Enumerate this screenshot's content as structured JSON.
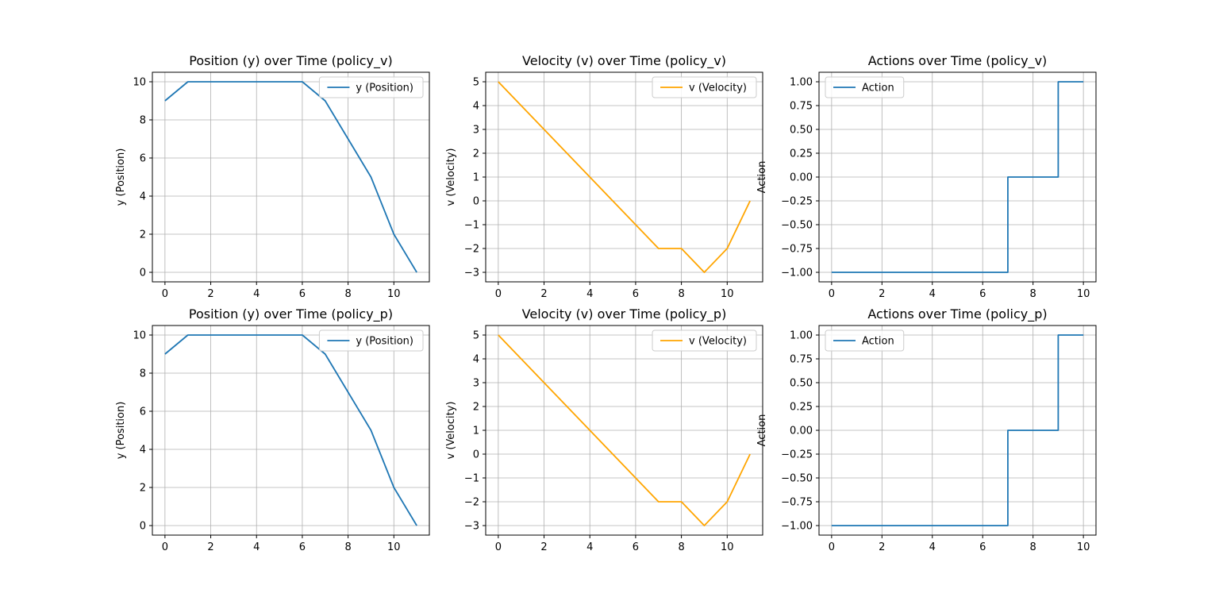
{
  "chart_data": [
    {
      "type": "line",
      "title": "Position (y) over Time (policy_v)",
      "xlabel": "",
      "ylabel": "y (Position)",
      "xlim": [
        -0.55,
        11.55
      ],
      "ylim": [
        -0.5,
        10.5
      ],
      "xticks": [
        0,
        2,
        4,
        6,
        8,
        10
      ],
      "yticks": [
        0,
        2,
        4,
        6,
        8,
        10
      ],
      "grid": true,
      "legend_position": "upper right",
      "series": [
        {
          "name": "y (Position)",
          "color": "#1f77b4",
          "step": false,
          "x": [
            0,
            1,
            2,
            3,
            4,
            5,
            6,
            7,
            8,
            9,
            10,
            11
          ],
          "y": [
            9,
            10,
            10,
            10,
            10,
            10,
            10,
            9,
            7,
            5,
            2,
            0
          ]
        }
      ]
    },
    {
      "type": "line",
      "title": "Velocity (v) over Time (policy_v)",
      "xlabel": "",
      "ylabel": "v (Velocity)",
      "xlim": [
        -0.55,
        11.55
      ],
      "ylim": [
        -3.4,
        5.4
      ],
      "xticks": [
        0,
        2,
        4,
        6,
        8,
        10
      ],
      "yticks": [
        -3,
        -2,
        -1,
        0,
        1,
        2,
        3,
        4,
        5
      ],
      "grid": true,
      "legend_position": "upper right",
      "series": [
        {
          "name": "v (Velocity)",
          "color": "#ffa500",
          "step": false,
          "x": [
            0,
            1,
            2,
            3,
            4,
            5,
            6,
            7,
            8,
            9,
            10,
            11
          ],
          "y": [
            5,
            4,
            3,
            2,
            1,
            0,
            -1,
            -2,
            -2,
            -3,
            -2,
            0
          ]
        }
      ]
    },
    {
      "type": "line",
      "title": "Actions over Time (policy_v)",
      "xlabel": "",
      "ylabel": "Action",
      "xlim": [
        -0.5,
        10.5
      ],
      "ylim": [
        -1.1,
        1.1
      ],
      "xticks": [
        0,
        2,
        4,
        6,
        8,
        10
      ],
      "yticks": [
        -1.0,
        -0.75,
        -0.5,
        -0.25,
        0.0,
        0.25,
        0.5,
        0.75,
        1.0
      ],
      "ytick_labels": [
        "−1.00",
        "−0.75",
        "−0.50",
        "−0.25",
        "0.00",
        "0.25",
        "0.50",
        "0.75",
        "1.00"
      ],
      "grid": true,
      "legend_position": "upper left",
      "series": [
        {
          "name": "Action",
          "color": "#1f77b4",
          "step": true,
          "x": [
            0,
            1,
            2,
            3,
            4,
            5,
            6,
            7,
            8,
            9,
            10
          ],
          "y": [
            -1,
            -1,
            -1,
            -1,
            -1,
            -1,
            -1,
            0,
            0,
            1,
            1
          ]
        }
      ]
    },
    {
      "type": "line",
      "title": "Position (y) over Time (policy_p)",
      "xlabel": "",
      "ylabel": "y (Position)",
      "xlim": [
        -0.55,
        11.55
      ],
      "ylim": [
        -0.5,
        10.5
      ],
      "xticks": [
        0,
        2,
        4,
        6,
        8,
        10
      ],
      "yticks": [
        0,
        2,
        4,
        6,
        8,
        10
      ],
      "grid": true,
      "legend_position": "upper right",
      "series": [
        {
          "name": "y (Position)",
          "color": "#1f77b4",
          "step": false,
          "x": [
            0,
            1,
            2,
            3,
            4,
            5,
            6,
            7,
            8,
            9,
            10,
            11
          ],
          "y": [
            9,
            10,
            10,
            10,
            10,
            10,
            10,
            9,
            7,
            5,
            2,
            0
          ]
        }
      ]
    },
    {
      "type": "line",
      "title": "Velocity (v) over Time (policy_p)",
      "xlabel": "",
      "ylabel": "v (Velocity)",
      "xlim": [
        -0.55,
        11.55
      ],
      "ylim": [
        -3.4,
        5.4
      ],
      "xticks": [
        0,
        2,
        4,
        6,
        8,
        10
      ],
      "yticks": [
        -3,
        -2,
        -1,
        0,
        1,
        2,
        3,
        4,
        5
      ],
      "grid": true,
      "legend_position": "upper right",
      "series": [
        {
          "name": "v (Velocity)",
          "color": "#ffa500",
          "step": false,
          "x": [
            0,
            1,
            2,
            3,
            4,
            5,
            6,
            7,
            8,
            9,
            10,
            11
          ],
          "y": [
            5,
            4,
            3,
            2,
            1,
            0,
            -1,
            -2,
            -2,
            -3,
            -2,
            0
          ]
        }
      ]
    },
    {
      "type": "line",
      "title": "Actions over Time (policy_p)",
      "xlabel": "",
      "ylabel": "Action",
      "xlim": [
        -0.5,
        10.5
      ],
      "ylim": [
        -1.1,
        1.1
      ],
      "xticks": [
        0,
        2,
        4,
        6,
        8,
        10
      ],
      "yticks": [
        -1.0,
        -0.75,
        -0.5,
        -0.25,
        0.0,
        0.25,
        0.5,
        0.75,
        1.0
      ],
      "ytick_labels": [
        "−1.00",
        "−0.75",
        "−0.50",
        "−0.25",
        "0.00",
        "0.25",
        "0.50",
        "0.75",
        "1.00"
      ],
      "grid": true,
      "legend_position": "upper left",
      "series": [
        {
          "name": "Action",
          "color": "#1f77b4",
          "step": true,
          "x": [
            0,
            1,
            2,
            3,
            4,
            5,
            6,
            7,
            8,
            9,
            10
          ],
          "y": [
            -1,
            -1,
            -1,
            -1,
            -1,
            -1,
            -1,
            0,
            0,
            1,
            1
          ]
        }
      ]
    }
  ]
}
